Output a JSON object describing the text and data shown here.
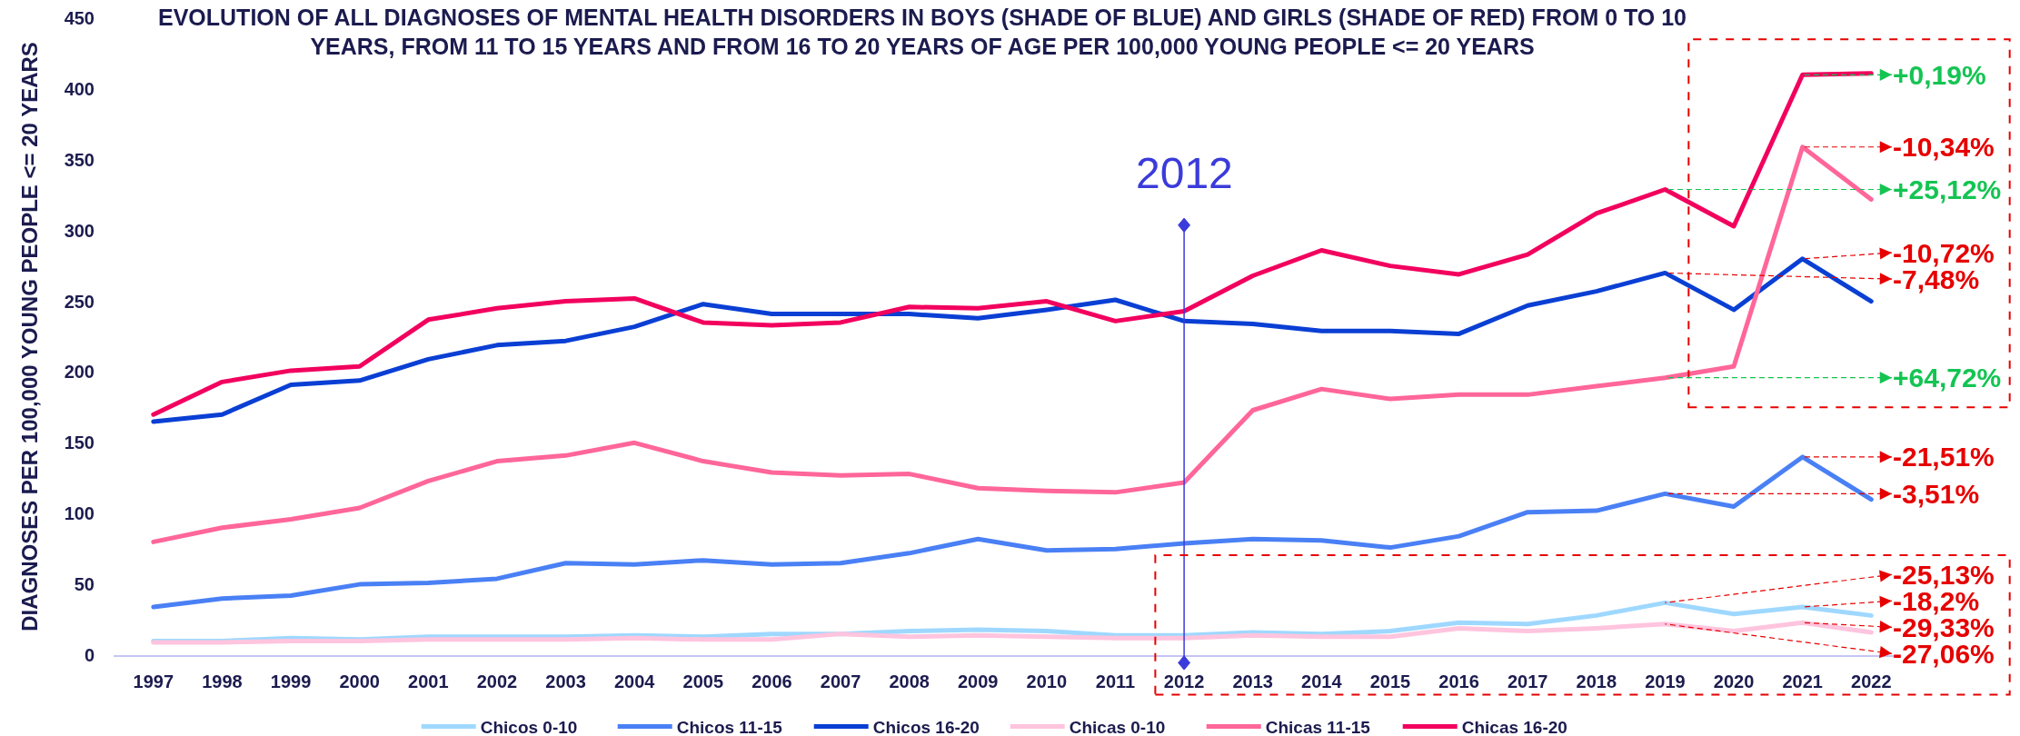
{
  "chart_data": {
    "type": "line",
    "title": "EVOLUTION OF ALL DIAGNOSES OF MENTAL HEALTH DISORDERS IN BOYS (SHADE OF BLUE) AND GIRLS (SHADE OF RED) FROM 0 TO 10 YEARS, FROM 11 TO 15 YEARS AND FROM 16 TO 20 YEARS OF AGE PER 100,000 YOUNG PEOPLE <= 20 YEARS",
    "ylabel": "DIAGNOSES PER 100,000 YOUNG PEOPLE <= 20 YEARS",
    "categories": [
      "1997",
      "1998",
      "1999",
      "2000",
      "2001",
      "2002",
      "2003",
      "2004",
      "2005",
      "2006",
      "2007",
      "2008",
      "2009",
      "2010",
      "2011",
      "2012",
      "2013",
      "2014",
      "2015",
      "2016",
      "2017",
      "2018",
      "2019",
      "2020",
      "2021",
      "2022"
    ],
    "series": [
      {
        "name": "Chicos 0-10",
        "color": "#9fd8ff",
        "values": [
          10,
          10,
          12,
          11,
          13,
          13,
          13,
          14,
          13,
          15,
          15,
          17,
          18,
          17,
          14,
          14,
          16,
          15,
          17,
          23,
          22,
          28,
          37,
          29,
          34,
          28
        ]
      },
      {
        "name": "Chicos 11-15",
        "color": "#4a80f5",
        "values": [
          34,
          40,
          42,
          50,
          51,
          54,
          65,
          64,
          67,
          64,
          65,
          72,
          82,
          74,
          75,
          79,
          82,
          81,
          76,
          84,
          101,
          102,
          114,
          105,
          140,
          110
        ]
      },
      {
        "name": "Chicos 16-20",
        "color": "#0a3fd4",
        "values": [
          165,
          170,
          191,
          194,
          209,
          219,
          222,
          232,
          248,
          241,
          241,
          241,
          238,
          244,
          251,
          236,
          234,
          229,
          229,
          227,
          247,
          257,
          270,
          244,
          280,
          250
        ]
      },
      {
        "name": "Chicas 0-10",
        "color": "#ffc4de",
        "values": [
          9,
          9,
          10,
          10,
          11,
          11,
          11,
          12,
          11,
          11,
          15,
          13,
          14,
          13,
          12,
          12,
          14,
          13,
          13,
          19,
          17,
          19,
          22,
          17,
          23,
          16
        ]
      },
      {
        "name": "Chicas 11-15",
        "color": "#ff6699",
        "values": [
          80,
          90,
          96,
          104,
          123,
          137,
          141,
          150,
          137,
          129,
          127,
          128,
          118,
          116,
          115,
          122,
          173,
          188,
          181,
          184,
          184,
          190,
          196,
          204,
          359,
          322
        ]
      },
      {
        "name": "Chicas 16-20",
        "color": "#f2005e",
        "values": [
          170,
          193,
          201,
          204,
          237,
          245,
          250,
          252,
          235,
          233,
          235,
          246,
          245,
          250,
          236,
          243,
          268,
          286,
          275,
          269,
          283,
          312,
          329,
          303,
          410,
          411
        ]
      }
    ],
    "ylim": [
      0,
      450
    ],
    "yticks": [
      0,
      50,
      100,
      150,
      200,
      250,
      300,
      350,
      400,
      450
    ],
    "legend": "bottom",
    "ref_lines": [
      {
        "axis": "x",
        "value": "2012",
        "label": "2012",
        "color": "#3b3bdb"
      }
    ],
    "annotations": [
      {
        "text": "+0,19%",
        "x": "2021",
        "y": 410
      },
      {
        "text": "-10,34%",
        "x": "2021",
        "y": 359
      },
      {
        "text": "+25,12%",
        "x": "2019",
        "y": 329
      },
      {
        "text": "-10,72%",
        "x": "2021",
        "y": 280
      },
      {
        "text": "-7,48%",
        "x": "2019",
        "y": 270
      },
      {
        "text": "+64,72%",
        "x": "2019",
        "y": 196
      },
      {
        "text": "-21,51%",
        "x": "2021",
        "y": 140
      },
      {
        "text": "-3,51%",
        "x": "2019",
        "y": 114
      },
      {
        "text": "-25,13%",
        "x": "2019",
        "y": 37
      },
      {
        "text": "-18,2%",
        "x": "2021",
        "y": 34
      },
      {
        "text": "-29,33%",
        "x": "2021",
        "y": 23
      },
      {
        "text": "-27,06%",
        "x": "2019",
        "y": 22
      }
    ]
  }
}
